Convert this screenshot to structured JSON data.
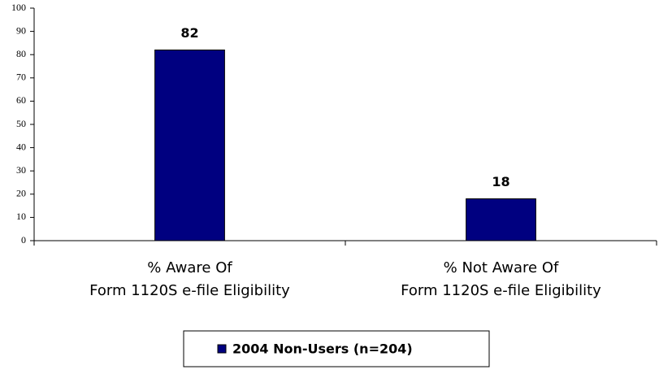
{
  "chart_data": {
    "type": "bar",
    "categories": [
      "% Aware Of\nForm 1120S e-file Eligibility",
      "% Not Aware Of\nForm 1120S e-file Eligibility"
    ],
    "series": [
      {
        "name": "2004 Non-Users (n=204)",
        "color": "#000080",
        "values": [
          82,
          18
        ]
      }
    ],
    "ylim": [
      0,
      100
    ],
    "yticks": [
      0,
      10,
      20,
      30,
      40,
      50,
      60,
      70,
      80,
      90,
      100
    ],
    "grid": false,
    "legend": "bottom"
  }
}
